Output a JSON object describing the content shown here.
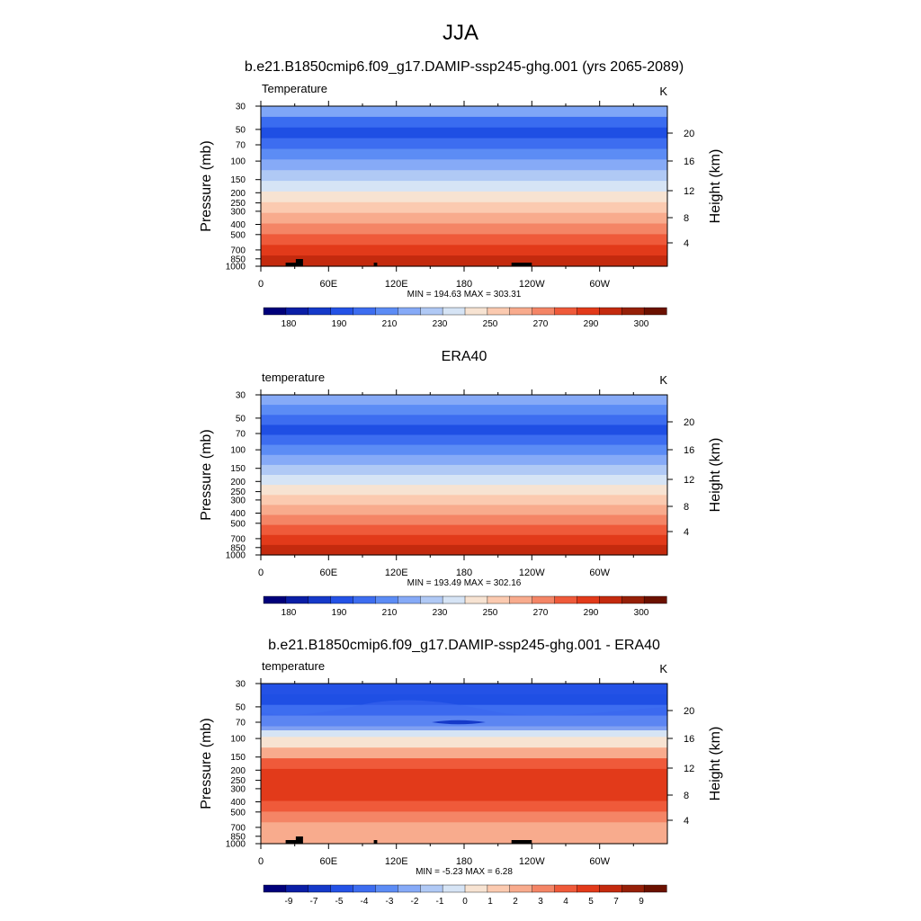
{
  "page_title": "JJA",
  "chart_data": [
    {
      "type": "heatmap",
      "title": "b.e21.B1850cmip6.f09_g17.DAMIP-ssp245-ghg.001 (yrs 2065-2089)",
      "left_label": "Temperature",
      "units": "K",
      "ylabel": "Pressure (mb)",
      "ylabel_right": "Height (km)",
      "xlabel": "",
      "y_ticks": [
        "30",
        "50",
        "70",
        "100",
        "150",
        "200",
        "250",
        "300",
        "400",
        "500",
        "700",
        "850",
        "1000"
      ],
      "height_ticks": [
        "20",
        "16",
        "12",
        "8",
        "4"
      ],
      "x_ticks": [
        "0",
        "60E",
        "120E",
        "180",
        "120W",
        "60W"
      ],
      "xlim": [
        0,
        360
      ],
      "stats": "MIN = 194.63  MAX = 303.31",
      "colorbar_labels": [
        "180",
        "190",
        "210",
        "230",
        "250",
        "270",
        "290",
        "300"
      ],
      "colorbar_colors": [
        "#00007a",
        "#0a1ea6",
        "#1539c9",
        "#2452e6",
        "#3d6df0",
        "#5c8cf5",
        "#86aaf7",
        "#b0c9f5",
        "#d6e4f5",
        "#f7e3d2",
        "#fbcab0",
        "#f8ab8d",
        "#f48566",
        "#ef5a3a",
        "#e23a1a",
        "#c42a0e",
        "#962008",
        "#6b1100"
      ],
      "layer_colors": [
        "#7fa6f7",
        "#3a6cf0",
        "#1f4fe4",
        "#3d6df0",
        "#5c8cf5",
        "#86aaf7",
        "#b0c9f5",
        "#d6e4f5",
        "#f7e3d2",
        "#fbcab0",
        "#f8ab8d",
        "#f48566",
        "#ef5a3a",
        "#e23a1a",
        "#c42a0e"
      ]
    },
    {
      "type": "heatmap",
      "title": "ERA40",
      "left_label": "temperature",
      "units": "K",
      "ylabel": "Pressure (mb)",
      "ylabel_right": "Height (km)",
      "xlabel": "",
      "y_ticks": [
        "30",
        "50",
        "70",
        "100",
        "150",
        "200",
        "250",
        "300",
        "400",
        "500",
        "700",
        "850",
        "1000"
      ],
      "height_ticks": [
        "20",
        "16",
        "12",
        "8",
        "4"
      ],
      "x_ticks": [
        "0",
        "60E",
        "120E",
        "180",
        "120W",
        "60W"
      ],
      "xlim": [
        0,
        360
      ],
      "stats": "MIN = 193.49  MAX = 302.16",
      "colorbar_labels": [
        "180",
        "190",
        "210",
        "230",
        "250",
        "270",
        "290",
        "300"
      ],
      "colorbar_colors": [
        "#00007a",
        "#0a1ea6",
        "#1539c9",
        "#2452e6",
        "#3d6df0",
        "#5c8cf5",
        "#86aaf7",
        "#b0c9f5",
        "#d6e4f5",
        "#f7e3d2",
        "#fbcab0",
        "#f8ab8d",
        "#f48566",
        "#ef5a3a",
        "#e23a1a",
        "#c42a0e",
        "#962008",
        "#6b1100"
      ],
      "layer_colors": [
        "#86aaf7",
        "#5c8cf5",
        "#3d6df0",
        "#1f4fe4",
        "#3d6df0",
        "#5c8cf5",
        "#86aaf7",
        "#b0c9f5",
        "#d6e4f5",
        "#f7e3d2",
        "#fbcab0",
        "#f8ab8d",
        "#f48566",
        "#ef5a3a",
        "#e23a1a",
        "#c42a0e"
      ]
    },
    {
      "type": "heatmap",
      "title": "b.e21.B1850cmip6.f09_g17.DAMIP-ssp245-ghg.001 - ERA40",
      "left_label": "temperature",
      "units": "K",
      "ylabel": "Pressure (mb)",
      "ylabel_right": "Height (km)",
      "xlabel": "",
      "y_ticks": [
        "30",
        "50",
        "70",
        "100",
        "150",
        "200",
        "250",
        "300",
        "400",
        "500",
        "700",
        "850",
        "1000"
      ],
      "height_ticks": [
        "20",
        "16",
        "12",
        "8",
        "4"
      ],
      "x_ticks": [
        "0",
        "60E",
        "120E",
        "180",
        "120W",
        "60W"
      ],
      "xlim": [
        0,
        360
      ],
      "stats": "MIN = -5.23  MAX =  6.28",
      "colorbar_labels": [
        "-9",
        "-7",
        "-5",
        "-4",
        "-3",
        "-2",
        "-1",
        "0",
        "1",
        "2",
        "3",
        "4",
        "5",
        "7",
        "9"
      ],
      "colorbar_colors": [
        "#00007a",
        "#0a1ea6",
        "#1539c9",
        "#2452e6",
        "#3d6df0",
        "#5c8cf5",
        "#86aaf7",
        "#b0c9f5",
        "#d6e4f5",
        "#f7e3d2",
        "#fbcab0",
        "#f8ab8d",
        "#f48566",
        "#ef5a3a",
        "#e23a1a",
        "#c42a0e",
        "#962008",
        "#6b1100"
      ],
      "layer_colors": [
        "#2452e6",
        "#1f4fe4",
        "#3d6df0",
        "#86aaf7",
        "#d6e4f5",
        "#f7e3d2",
        "#f8ab8d",
        "#ef5a3a",
        "#e23a1a",
        "#e23a1a",
        "#e23a1a",
        "#ef5a3a",
        "#f48566",
        "#f8ab8d",
        "#f8ab8d"
      ]
    }
  ]
}
